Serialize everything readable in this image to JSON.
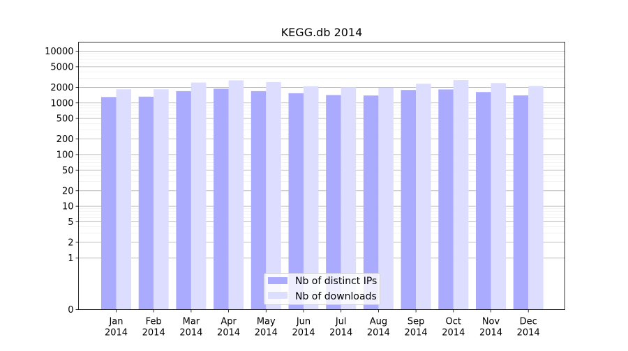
{
  "chart_data": {
    "type": "bar",
    "title": "KEGG.db 2014",
    "xlabel": "",
    "ylabel": "",
    "yscale": "symlog",
    "ylim": [
      0,
      15000
    ],
    "yticks": [
      0,
      1,
      2,
      5,
      10,
      20,
      50,
      100,
      200,
      500,
      1000,
      2000,
      5000,
      10000
    ],
    "ytick_labels": [
      "0",
      "1",
      "2",
      "5",
      "10",
      "20",
      "50",
      "100",
      "200",
      "500",
      "1000",
      "2000",
      "5000",
      "10000"
    ],
    "categories": [
      "Jan\n2014",
      "Feb\n2014",
      "Mar\n2014",
      "Apr\n2014",
      "May\n2014",
      "Jun\n2014",
      "Jul\n2014",
      "Aug\n2014",
      "Sep\n2014",
      "Oct\n2014",
      "Nov\n2014",
      "Dec\n2014"
    ],
    "series": [
      {
        "name": "Nb of distinct IPs",
        "color": "#aaaaff",
        "values": [
          1300,
          1320,
          1690,
          1880,
          1690,
          1540,
          1420,
          1390,
          1780,
          1820,
          1620,
          1400
        ]
      },
      {
        "name": "Nb of downloads",
        "color": "#ddddff",
        "values": [
          1830,
          1830,
          2480,
          2730,
          2520,
          2100,
          2010,
          1970,
          2350,
          2760,
          2420,
          2120
        ]
      }
    ],
    "grid": true,
    "legend_position": "bottom-center"
  }
}
